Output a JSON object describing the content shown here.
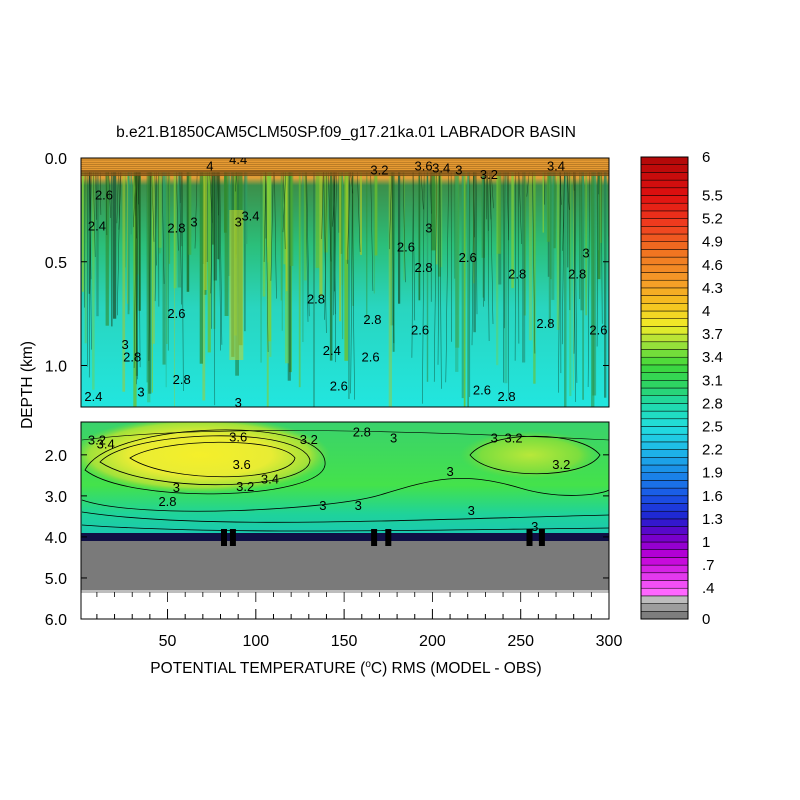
{
  "chart_data": {
    "type": "heatmap",
    "title": "b.e21.B1850CAM5CLM50SP.f09_g17.21ka.01 LABRADOR BASIN",
    "xlabel_prefix": "POTENTIAL TEMPERATURE (",
    "xlabel_unit": "o",
    "xlabel_suffix": "C) RMS (MODEL - OBS)",
    "ylabel": "DEPTH (km)",
    "xlim": [
      1,
      300
    ],
    "x_ticks": [
      "50",
      "100",
      "150",
      "200",
      "250",
      "300"
    ],
    "x_tick_values": [
      50,
      100,
      150,
      200,
      250,
      300
    ],
    "upper_panel": {
      "ylim": [
        0.0,
        1.2
      ],
      "y_ticks": [
        "0.0",
        "0.5",
        "1.0"
      ],
      "y_tick_values": [
        0.0,
        0.5,
        1.0
      ]
    },
    "lower_panel": {
      "ylim": [
        1.2,
        6.0
      ],
      "y_ticks": [
        "2.0",
        "3.0",
        "4.0",
        "5.0",
        "6.0"
      ],
      "y_tick_values": [
        2.0,
        3.0,
        4.0,
        5.0,
        6.0
      ]
    },
    "ocean_floor_depth_km": 4.1,
    "colorbar": {
      "min": 0,
      "max": 6,
      "labels": [
        "0",
        ".4",
        ".7",
        "1",
        "1.3",
        "1.6",
        "1.9",
        "2.2",
        "2.5",
        "2.8",
        "3.1",
        "3.4",
        "3.7",
        "4",
        "4.3",
        "4.6",
        "4.9",
        "5.2",
        "5.5",
        "6"
      ],
      "label_values": [
        0,
        0.4,
        0.7,
        1.0,
        1.3,
        1.6,
        1.9,
        2.2,
        2.5,
        2.8,
        3.1,
        3.4,
        3.7,
        4.0,
        4.3,
        4.6,
        4.9,
        5.2,
        5.5,
        6.0
      ]
    },
    "contour_labels_lower": [
      {
        "text": "3.2",
        "x": 10,
        "y": 1.75
      },
      {
        "text": "3.4",
        "x": 15,
        "y": 1.85
      },
      {
        "text": "3.6",
        "x": 90,
        "y": 1.68
      },
      {
        "text": "3.2",
        "x": 130,
        "y": 1.74
      },
      {
        "text": "2.8",
        "x": 160,
        "y": 1.55
      },
      {
        "text": "3",
        "x": 178,
        "y": 1.7
      },
      {
        "text": "3.6",
        "x": 92,
        "y": 2.35
      },
      {
        "text": "3.4",
        "x": 108,
        "y": 2.7
      },
      {
        "text": "3.2",
        "x": 94,
        "y": 2.88
      },
      {
        "text": "3",
        "x": 55,
        "y": 2.9
      },
      {
        "text": "2.8",
        "x": 50,
        "y": 3.25
      },
      {
        "text": "3",
        "x": 138,
        "y": 3.35
      },
      {
        "text": "3",
        "x": 158,
        "y": 3.35
      },
      {
        "text": "3",
        "x": 210,
        "y": 2.52
      },
      {
        "text": "3",
        "x": 222,
        "y": 3.47
      },
      {
        "text": "3",
        "x": 235,
        "y": 1.7
      },
      {
        "text": "3.2",
        "x": 246,
        "y": 1.7
      },
      {
        "text": "3.2",
        "x": 273,
        "y": 2.35
      },
      {
        "text": "3",
        "x": 258,
        "y": 3.85
      }
    ],
    "contour_labels_upper": [
      {
        "text": "4.4",
        "x": 90,
        "y": 0.03
      },
      {
        "text": "4",
        "x": 74,
        "y": 0.06
      },
      {
        "text": "3.2",
        "x": 170,
        "y": 0.08
      },
      {
        "text": "3.6",
        "x": 195,
        "y": 0.06
      },
      {
        "text": "3.4",
        "x": 205,
        "y": 0.07
      },
      {
        "text": "3",
        "x": 215,
        "y": 0.08
      },
      {
        "text": "3.2",
        "x": 232,
        "y": 0.1
      },
      {
        "text": "3.4",
        "x": 270,
        "y": 0.06
      },
      {
        "text": "2.4",
        "x": 10,
        "y": 0.35
      },
      {
        "text": "2.6",
        "x": 14,
        "y": 0.2
      },
      {
        "text": "2.8",
        "x": 55,
        "y": 0.36
      },
      {
        "text": "3",
        "x": 65,
        "y": 0.33
      },
      {
        "text": "3",
        "x": 90,
        "y": 0.33
      },
      {
        "text": "3.4",
        "x": 97,
        "y": 0.3
      },
      {
        "text": "2.6",
        "x": 185,
        "y": 0.45
      },
      {
        "text": "2.8",
        "x": 195,
        "y": 0.55
      },
      {
        "text": "3",
        "x": 198,
        "y": 0.36
      },
      {
        "text": "2.6",
        "x": 220,
        "y": 0.5
      },
      {
        "text": "2.8",
        "x": 248,
        "y": 0.58
      },
      {
        "text": "2.8",
        "x": 282,
        "y": 0.58
      },
      {
        "text": "3",
        "x": 287,
        "y": 0.48
      },
      {
        "text": "2.6",
        "x": 55,
        "y": 0.77
      },
      {
        "text": "2.8",
        "x": 30,
        "y": 0.98
      },
      {
        "text": "3",
        "x": 26,
        "y": 0.92
      },
      {
        "text": "2.8",
        "x": 58,
        "y": 1.09
      },
      {
        "text": "3",
        "x": 35,
        "y": 1.15
      },
      {
        "text": "2.4",
        "x": 143,
        "y": 0.95
      },
      {
        "text": "2.6",
        "x": 147,
        "y": 1.12
      },
      {
        "text": "2.8",
        "x": 134,
        "y": 0.7
      },
      {
        "text": "2.6",
        "x": 165,
        "y": 0.98
      },
      {
        "text": "2.6",
        "x": 193,
        "y": 0.85
      },
      {
        "text": "2.8",
        "x": 166,
        "y": 0.8
      },
      {
        "text": "2.6",
        "x": 228,
        "y": 1.14
      },
      {
        "text": "2.8",
        "x": 242,
        "y": 1.17
      },
      {
        "text": "3",
        "x": 90,
        "y": 1.2
      },
      {
        "text": "2.8",
        "x": 264,
        "y": 0.82
      },
      {
        "text": "2.6",
        "x": 294,
        "y": 0.85
      },
      {
        "text": "2.4",
        "x": 8,
        "y": 1.17
      }
    ]
  }
}
